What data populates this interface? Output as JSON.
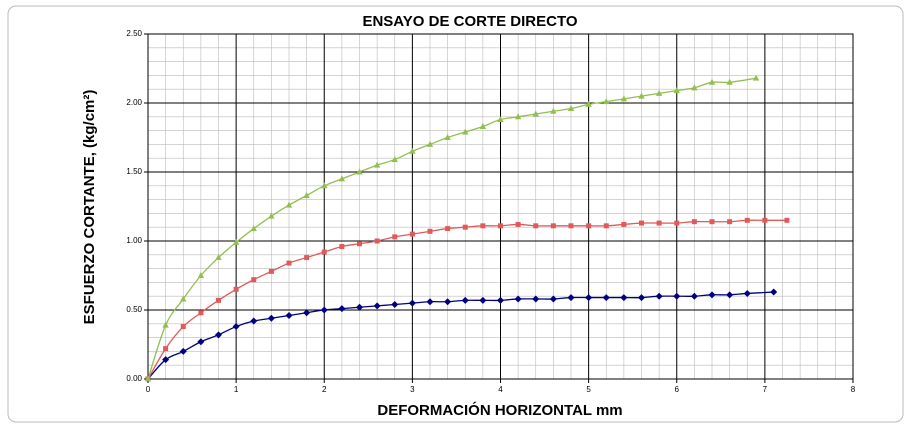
{
  "chart_data": {
    "type": "line",
    "title": "ENSAYO DE CORTE DIRECTO",
    "xlabel": "DEFORMACIÓN HORIZONTAL mm",
    "ylabel": "ESFUERZO CORTANTE, (kg/cm²)",
    "xlim": [
      0,
      8
    ],
    "xticks": [
      0,
      1,
      2,
      3,
      4,
      5,
      6,
      7,
      8
    ],
    "ylim": [
      0,
      2.5
    ],
    "yticks": [
      {
        "value": 0,
        "label": "0.00"
      },
      {
        "value": 0.5,
        "label": "0.50"
      },
      {
        "value": 1,
        "label": "1.00"
      },
      {
        "value": 1.5,
        "label": "1.50"
      },
      {
        "value": 2,
        "label": "2.00"
      },
      {
        "value": 2.5,
        "label": "2.50"
      }
    ],
    "grid": true,
    "series": [
      {
        "color": "#000080",
        "marker": "diamond",
        "x": [
          0,
          0.2,
          0.4,
          0.6,
          0.8,
          1.0,
          1.2,
          1.4,
          1.6,
          1.8,
          2.0,
          2.2,
          2.4,
          2.6,
          2.8,
          3.0,
          3.2,
          3.4,
          3.6,
          3.8,
          4.0,
          4.2,
          4.4,
          4.6,
          4.8,
          5.0,
          5.2,
          5.4,
          5.6,
          5.8,
          6.0,
          6.2,
          6.4,
          6.6,
          6.8,
          7.1
        ],
        "values": [
          0,
          0.14,
          0.2,
          0.27,
          0.32,
          0.38,
          0.42,
          0.44,
          0.46,
          0.48,
          0.5,
          0.51,
          0.52,
          0.53,
          0.54,
          0.55,
          0.56,
          0.56,
          0.57,
          0.57,
          0.57,
          0.58,
          0.58,
          0.58,
          0.59,
          0.59,
          0.59,
          0.59,
          0.59,
          0.6,
          0.6,
          0.6,
          0.61,
          0.61,
          0.62,
          0.63
        ]
      },
      {
        "color": "#e05a5a",
        "marker": "square",
        "x": [
          0,
          0.2,
          0.4,
          0.6,
          0.8,
          1.0,
          1.2,
          1.4,
          1.6,
          1.8,
          2.0,
          2.2,
          2.4,
          2.6,
          2.8,
          3.0,
          3.2,
          3.4,
          3.6,
          3.8,
          4.0,
          4.2,
          4.4,
          4.6,
          4.8,
          5.0,
          5.2,
          5.4,
          5.6,
          5.8,
          6.0,
          6.2,
          6.4,
          6.6,
          6.8,
          7.0,
          7.25
        ],
        "values": [
          0,
          0.22,
          0.38,
          0.48,
          0.57,
          0.65,
          0.72,
          0.78,
          0.84,
          0.88,
          0.92,
          0.96,
          0.98,
          1.0,
          1.03,
          1.05,
          1.07,
          1.09,
          1.1,
          1.11,
          1.11,
          1.12,
          1.11,
          1.11,
          1.11,
          1.11,
          1.11,
          1.12,
          1.13,
          1.13,
          1.13,
          1.14,
          1.14,
          1.14,
          1.15,
          1.15,
          1.15
        ]
      },
      {
        "color": "#92c050",
        "marker": "triangle",
        "x": [
          0,
          0.2,
          0.4,
          0.6,
          0.8,
          1.0,
          1.2,
          1.4,
          1.6,
          1.8,
          2.0,
          2.2,
          2.4,
          2.6,
          2.8,
          3.0,
          3.2,
          3.4,
          3.6,
          3.8,
          4.0,
          4.2,
          4.4,
          4.6,
          4.8,
          5.0,
          5.2,
          5.4,
          5.6,
          5.8,
          6.0,
          6.2,
          6.4,
          6.6,
          6.9
        ],
        "values": [
          0,
          0.39,
          0.58,
          0.75,
          0.88,
          0.99,
          1.09,
          1.18,
          1.26,
          1.33,
          1.4,
          1.45,
          1.5,
          1.55,
          1.59,
          1.65,
          1.7,
          1.75,
          1.79,
          1.83,
          1.88,
          1.9,
          1.92,
          1.94,
          1.96,
          1.99,
          2.01,
          2.03,
          2.05,
          2.07,
          2.09,
          2.11,
          2.15,
          2.15,
          2.18
        ]
      }
    ]
  }
}
